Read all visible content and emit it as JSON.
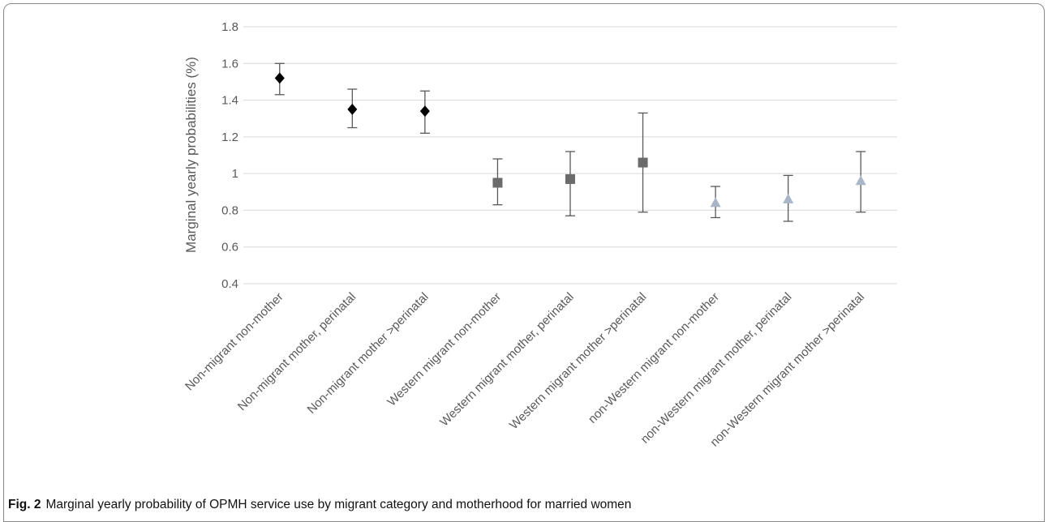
{
  "caption": {
    "label": "Fig. 2",
    "text": "Marginal yearly probability of OPMH service use by migrant category and motherhood for married women"
  },
  "chart_data": {
    "type": "scatter",
    "ylabel": "Marginal yearly probabilities (%)",
    "xlabel": "",
    "ylim": [
      0.4,
      1.8
    ],
    "yticks": [
      0.4,
      0.6,
      0.8,
      1,
      1.2,
      1.4,
      1.6,
      1.8
    ],
    "grid": true,
    "categories": [
      "Non-migrant non-mother",
      "Non-migrant mother, perinatal",
      "Non-migrant mother >perinatal",
      "Western migrant non-mother",
      "Western migrant mother, perinatal",
      "Western migrant mother >perinatal",
      "non-Western migrant non-mother",
      "non-Western migrant mother, perinatal",
      "non-Western migrant mother >perinatal"
    ],
    "values": [
      1.52,
      1.35,
      1.34,
      0.95,
      0.97,
      1.06,
      0.84,
      0.86,
      0.96
    ],
    "lower": [
      1.43,
      1.25,
      1.22,
      0.83,
      0.77,
      0.79,
      0.76,
      0.74,
      0.79
    ],
    "upper": [
      1.6,
      1.46,
      1.45,
      1.08,
      1.12,
      1.33,
      0.93,
      0.99,
      1.12
    ],
    "markers": [
      "diamond",
      "diamond",
      "diamond",
      "square",
      "square",
      "square",
      "triangle",
      "triangle",
      "triangle"
    ],
    "colors": [
      "#000000",
      "#000000",
      "#000000",
      "#6b6b6b",
      "#6b6b6b",
      "#6b6b6b",
      "#a8b6c8",
      "#a8b6c8",
      "#a8b6c8"
    ],
    "gridColor": "#d9d9d9",
    "errorBarColor": "#595959"
  }
}
